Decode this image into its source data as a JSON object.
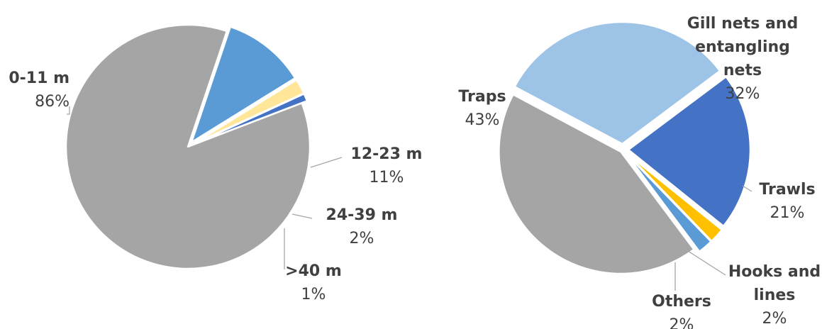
{
  "chart_data": [
    {
      "type": "pie",
      "title": "",
      "slices": [
        {
          "label": "0-11 m",
          "value": 86,
          "pct_label": "86%",
          "color": "#a5a5a5"
        },
        {
          "label": "12-23 m",
          "value": 11,
          "pct_label": "11%",
          "color": "#5b9bd5"
        },
        {
          "label": "24-39 m",
          "value": 2,
          "pct_label": "2%",
          "color": "#ffe699"
        },
        {
          "label": ">40 m",
          "value": 1,
          "pct_label": "1%",
          "color": "#4472c4"
        }
      ]
    },
    {
      "type": "pie",
      "title": "",
      "slices": [
        {
          "label": "Gill nets and entangling nets",
          "value": 32,
          "pct_label": "32%",
          "color": "#9dc3e6"
        },
        {
          "label": "Trawls",
          "value": 21,
          "pct_label": "21%",
          "color": "#4472c4"
        },
        {
          "label": "Hooks and lines",
          "value": 2,
          "pct_label": "2%",
          "color": "#ffc000"
        },
        {
          "label": "Others",
          "value": 2,
          "pct_label": "2%",
          "color": "#5b9bd5"
        },
        {
          "label": "Traps",
          "value": 43,
          "pct_label": "43%",
          "color": "#a5a5a5"
        }
      ]
    }
  ]
}
